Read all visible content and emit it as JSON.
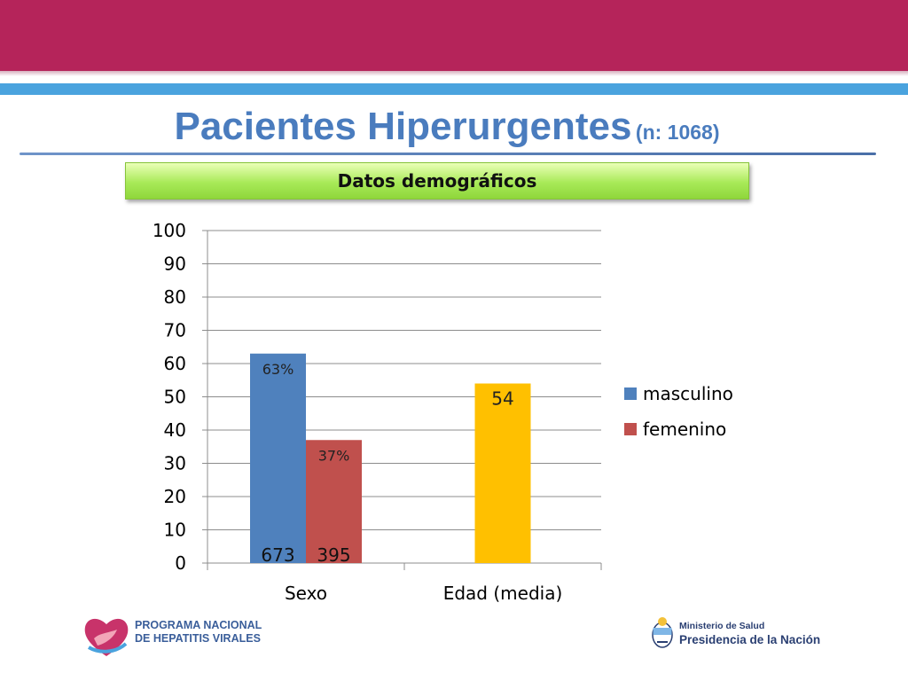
{
  "slide": {
    "title": "Pacientes Hiperurgentes",
    "title_note": "(n: 1068)",
    "subtitle": "Datos demográficos",
    "colors": {
      "band": "#b5245a",
      "strip": "#4aa3de",
      "title": "#4a7cbe"
    }
  },
  "chart_data": {
    "type": "bar",
    "title": "",
    "xlabel": "",
    "ylabel": "",
    "ylim": [
      0,
      100
    ],
    "yticks": [
      0,
      10,
      20,
      30,
      40,
      50,
      60,
      70,
      80,
      90,
      100
    ],
    "categories": [
      "Sexo",
      "Edad (media)"
    ],
    "grid": true,
    "legend": "right",
    "series": [
      {
        "name": "masculino",
        "color": "#4f81bd",
        "values": [
          63,
          null
        ],
        "labels": [
          "63%",
          null
        ],
        "base_labels": [
          "673",
          null
        ]
      },
      {
        "name": "femenino",
        "color": "#c0504d",
        "values": [
          37,
          null
        ],
        "labels": [
          "37%",
          null
        ],
        "base_labels": [
          "395",
          null
        ]
      }
    ],
    "extra_bar": {
      "category": "Edad (media)",
      "value": 54,
      "label": "54",
      "color": "#ffc000"
    }
  },
  "footer": {
    "left_logo": {
      "line1": "Programa Nacional",
      "line2": "de Hepatitis Virales"
    },
    "right_logo": {
      "line1": "Ministerio de Salud",
      "line2": "Presidencia de la Nación"
    }
  }
}
